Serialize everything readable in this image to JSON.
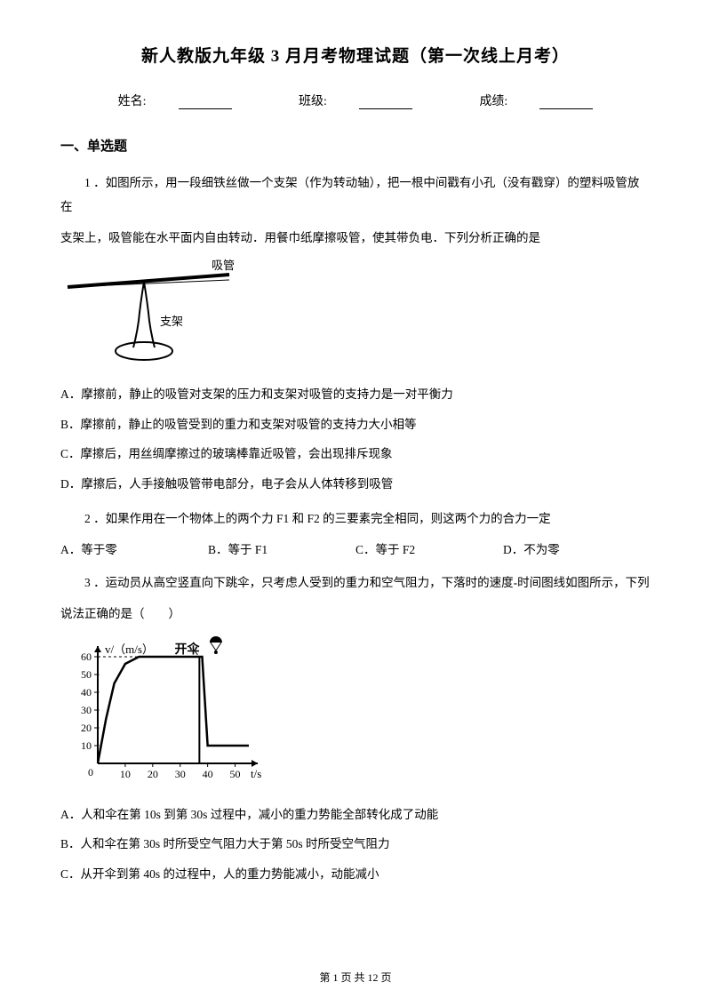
{
  "title": "新人教版九年级 3 月月考物理试题（第一次线上月考）",
  "info": {
    "name_label": "姓名:",
    "class_label": "班级:",
    "score_label": "成绩:"
  },
  "section1": "一、单选题",
  "q1": {
    "num": "1 ．",
    "text_a": "如图所示，用一段细铁丝做一个支架（作为转动轴），把一根中间戳有小孔（没有戳穿）的塑料吸管放在",
    "text_b": "支架上，吸管能在水平面内自由转动．用餐巾纸摩擦吸管，使其带负电．下列分析正确的是",
    "figure": {
      "label_straw": "吸管",
      "label_stand": "支架"
    },
    "A": "A．摩擦前，静止的吸管对支架的压力和支架对吸管的支持力是一对平衡力",
    "B": "B．摩擦前，静止的吸管受到的重力和支架对吸管的支持力大小相等",
    "C": "C．摩擦后，用丝绸摩擦过的玻璃棒靠近吸管，会出现排斥现象",
    "D": "D．摩擦后，人手接触吸管带电部分，电子会从人体转移到吸管"
  },
  "q2": {
    "num": "2 ．",
    "text": "如果作用在一个物体上的两个力 F1 和 F2 的三要素完全相同，则这两个力的合力一定",
    "A": "A．等于零",
    "B": "B．等于 F1",
    "C": "C．等于 F2",
    "D": "D．不为零"
  },
  "q3": {
    "num": "3 ．",
    "text_a": "运动员从高空竖直向下跳伞，只考虑人受到的重力和空气阻力，下落时的速度-时间图线如图所示，下列",
    "text_b": "说法正确的是（　　）",
    "chart": {
      "ylabel": "v/（m/s）",
      "xlabel": "t/s",
      "ymax": 60,
      "yticks": [
        10,
        20,
        30,
        40,
        50,
        60
      ],
      "xticks": [
        0,
        10,
        20,
        30,
        40,
        50
      ],
      "annotation": "开伞",
      "line_color": "#000000",
      "tick_fontsize": 12,
      "data_points": [
        [
          0,
          0
        ],
        [
          3,
          25
        ],
        [
          6,
          45
        ],
        [
          10,
          56
        ],
        [
          15,
          60
        ],
        [
          30,
          60
        ],
        [
          37,
          60
        ],
        [
          38,
          60
        ],
        [
          39,
          35
        ],
        [
          40,
          10
        ],
        [
          55,
          10
        ]
      ],
      "vmarker_x": 37
    },
    "A": "A．人和伞在第 10s 到第 30s 过程中，减小的重力势能全部转化成了动能",
    "B": "B．人和伞在第 30s 时所受空气阻力大于第 50s 时所受空气阻力",
    "C": "C．从开伞到第 40s 的过程中，人的重力势能减小，动能减小"
  },
  "footer": "第 1 页 共 12 页"
}
